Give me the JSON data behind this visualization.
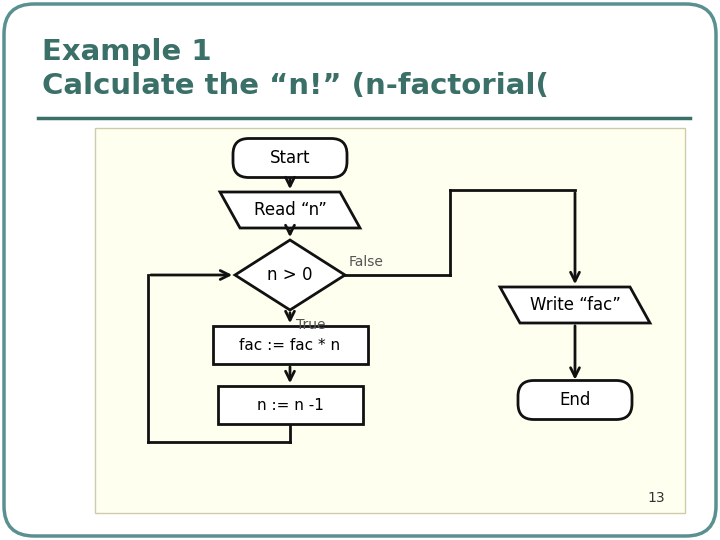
{
  "title_line1": "Example 1",
  "title_line2": "Calculate the “n!” (n-factorial(",
  "title_color": "#3a7068",
  "bg_outer": "#ffffff",
  "bg_outer_border": "#5a9090",
  "bg_inner": "#fffff0",
  "shape_fill": "#ffffff",
  "shape_border": "#111111",
  "arrow_color": "#111111",
  "label_color": "#555555",
  "page_num": "13",
  "lw": 2.0
}
